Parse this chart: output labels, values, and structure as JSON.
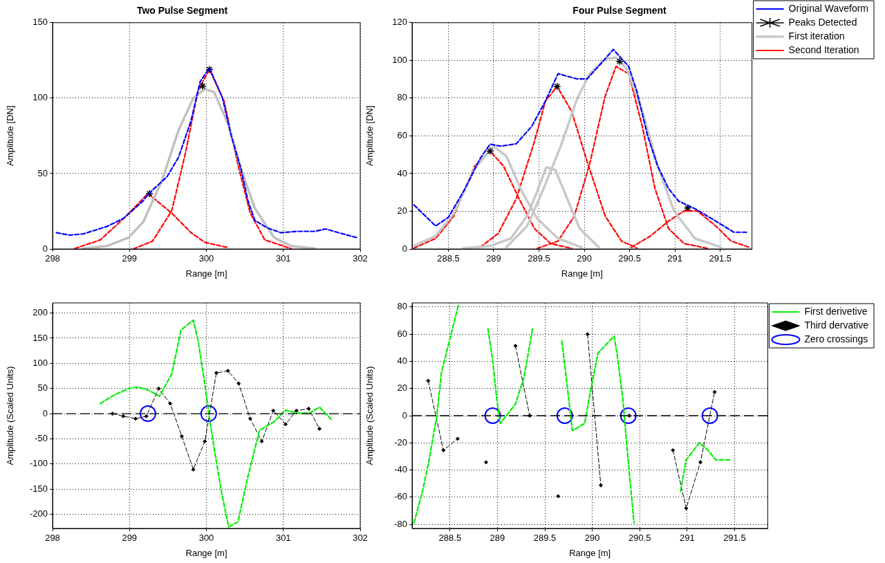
{
  "chart_data": [
    {
      "type": "line",
      "title": "Two Pulse Segment",
      "xlabel": "Range [m]",
      "ylabel": "Amplitude [DN]",
      "xlim": [
        298,
        302
      ],
      "xticks": [
        298,
        299,
        300,
        301,
        302
      ],
      "ylim": [
        0,
        150
      ],
      "yticks": [
        0,
        50,
        100,
        150
      ],
      "grid": true,
      "legend": false,
      "series": [
        {
          "color": "#0000ff",
          "line_style": "dashed",
          "x": [
            298.05,
            298.22,
            298.4,
            298.71,
            298.93,
            299.18,
            299.25,
            299.49,
            299.64,
            299.8,
            299.92,
            300.04,
            300.21,
            300.32,
            300.45,
            300.54,
            300.63,
            300.79,
            300.97,
            301.19,
            301.41,
            301.55,
            301.72,
            301.95
          ],
          "values": [
            10.8,
            9.2,
            10,
            15,
            20.5,
            32,
            36.7,
            48,
            61,
            85,
            111,
            120,
            100,
            75.6,
            53,
            32,
            19,
            14,
            10.8,
            11.7,
            11.7,
            13.3,
            10.8,
            7.6
          ]
        },
        {
          "type": "scatter",
          "color": "#000000",
          "marker": "cross",
          "x": [
            299.26,
            299.95,
            300.04
          ],
          "values": [
            36.7,
            108,
            119
          ]
        },
        {
          "color": "#c0c0c0",
          "line_style": "solid",
          "x": [
            298.4,
            298.71,
            298.99,
            299.18,
            299.42,
            299.64,
            299.83,
            299.98,
            300.1,
            300.29,
            300.45,
            300.63,
            300.88,
            301.1,
            301.41
          ],
          "values": [
            0.3,
            2,
            7.6,
            18,
            45,
            79,
            100,
            106,
            104,
            82,
            53,
            27,
            7.6,
            2,
            0.3
          ]
        },
        {
          "color": "#ff0000",
          "line_style": "dashed",
          "x": [
            298.29,
            298.62,
            298.93,
            299.24,
            299.55,
            299.8,
            299.98,
            300.29
          ],
          "values": [
            0.3,
            6,
            20.5,
            36.7,
            23.8,
            10.8,
            4.4,
            0.8
          ]
        },
        {
          "color": "#ff0000",
          "line_style": "dashed",
          "x": [
            299.05,
            299.3,
            299.55,
            299.73,
            299.89,
            300.04,
            300.23,
            300.41,
            300.57,
            300.76,
            301.1
          ],
          "values": [
            0,
            5.2,
            25.4,
            64,
            105,
            119,
            98,
            56,
            23.8,
            6,
            0.3
          ]
        }
      ]
    },
    {
      "type": "line",
      "title": "Four Pulse Segment",
      "xlabel": "Range [m]",
      "ylabel": "Amplitude [DN]",
      "xlim": [
        288.1,
        291.85
      ],
      "xticks": [
        288.5,
        289,
        289.5,
        290,
        290.5,
        291,
        291.5
      ],
      "ylim": [
        0,
        120
      ],
      "yticks": [
        0,
        20,
        40,
        60,
        80,
        100,
        120
      ],
      "grid": true,
      "legend": "right",
      "series": [
        {
          "name": "Original Waveform",
          "color": "#0000ff",
          "line_style": "dashed",
          "x": [
            288.12,
            288.36,
            288.5,
            288.67,
            288.85,
            288.96,
            289.08,
            289.25,
            289.42,
            289.57,
            289.71,
            289.92,
            290.03,
            290.18,
            290.32,
            290.49,
            290.58,
            290.7,
            290.81,
            290.93,
            291.04,
            291.22,
            291.45,
            291.65,
            291.81
          ],
          "values": [
            23.4,
            12.2,
            16.8,
            30.7,
            47.9,
            55.6,
            54.5,
            55.8,
            65,
            78.3,
            92.9,
            90.2,
            90.2,
            98.1,
            105.8,
            96.8,
            83.6,
            59.8,
            43.9,
            32,
            25.4,
            21.4,
            14.8,
            8.9,
            8.9
          ]
        },
        {
          "name": "Peaks Detected",
          "type": "scatter",
          "color": "#000000",
          "marker": "cross",
          "x": [
            288.96,
            289.7,
            290.39,
            291.14
          ],
          "values": [
            51.9,
            86.2,
            99.5,
            21.7
          ]
        },
        {
          "name": "First iteration",
          "color": "#c8c8c8",
          "line_style": "solid",
          "x": [
            288.12,
            288.36,
            288.56,
            288.79,
            289,
            289.14,
            289.31,
            289.48,
            289.71,
            289.97
          ],
          "values": [
            1.6,
            6.9,
            18.8,
            42.6,
            54.5,
            49.2,
            30.7,
            16.1,
            5.6,
            0.9
          ]
        },
        {
          "color": "#c8c8c8",
          "line_style": "solid",
          "x": [
            288.67,
            288.96,
            289.19,
            289.37,
            289.48,
            289.58,
            289.68,
            289.8,
            289.95,
            290.16
          ],
          "values": [
            0.5,
            1.6,
            5.6,
            17.5,
            30.7,
            43.3,
            41.9,
            28,
            10.8,
            0.9
          ]
        },
        {
          "color": "#c8c8c8",
          "line_style": "solid",
          "x": [
            289.14,
            289.37,
            289.54,
            289.74,
            289.92,
            290.06,
            290.23,
            290.35,
            290.47,
            290.64,
            290.81,
            290.99,
            291.22,
            291.51
          ],
          "values": [
            0.9,
            12.2,
            30.7,
            54.5,
            79.6,
            92.9,
            100.8,
            101.5,
            95.5,
            73,
            43.9,
            20.1,
            5.6,
            0.9
          ]
        },
        {
          "name": "Second Iteration",
          "color": "#ff0000",
          "line_style": "dashed",
          "x": [
            288.12,
            288.36,
            288.56,
            288.79,
            288.96,
            289.11,
            289.28,
            289.45,
            289.63,
            289.86
          ],
          "values": [
            0.5,
            5.6,
            17.5,
            43.9,
            51.9,
            43.9,
            26.7,
            10.8,
            2.9,
            0.3
          ]
        },
        {
          "color": "#ff0000",
          "line_style": "dashed",
          "x": [
            288.85,
            289.05,
            289.25,
            289.45,
            289.57,
            289.7,
            289.86,
            290.03,
            290.23,
            290.41,
            290.58
          ],
          "values": [
            0.9,
            8.2,
            26.7,
            57,
            78.3,
            86.2,
            73,
            46.6,
            17.5,
            4.2,
            0.5
          ]
        },
        {
          "color": "#ff0000",
          "line_style": "dashed",
          "x": [
            289.48,
            289.71,
            289.89,
            290.06,
            290.23,
            290.35,
            290.49,
            290.64,
            290.78,
            290.93,
            291.1,
            291.36
          ],
          "values": [
            0.3,
            4.2,
            17.5,
            45.2,
            81,
            96.8,
            92.9,
            65,
            32,
            10.8,
            2.9,
            0.3
          ]
        },
        {
          "color": "#ff0000",
          "line_style": "dashed",
          "x": [
            290.52,
            290.73,
            290.93,
            291.1,
            291.25,
            291.45,
            291.62,
            291.82
          ],
          "values": [
            0.9,
            6.9,
            14.8,
            20.1,
            20.1,
            12.2,
            4.2,
            0.9
          ]
        }
      ]
    },
    {
      "type": "line",
      "xlabel": "Range [m]",
      "ylabel": "Amplitude (Scaled Units)",
      "xlim": [
        298,
        302
      ],
      "xticks": [
        298,
        299,
        300,
        301,
        302
      ],
      "ylim": [
        -228,
        220
      ],
      "yticks": [
        -200,
        -150,
        -100,
        -50,
        0,
        50,
        100,
        150,
        200
      ],
      "grid": true,
      "legend": false,
      "ref_lines": [
        {
          "axis": "y",
          "value": 0,
          "color": "#000000",
          "line_style": "dashed"
        }
      ],
      "series": [
        {
          "color": "#00ee00",
          "line_style": "dashed",
          "x": [
            298.62,
            298.8,
            298.99,
            299.11,
            299.24,
            299.39,
            299.55,
            299.67,
            299.83,
            299.89,
            299.98,
            300.04,
            300.11,
            300.2,
            300.29,
            300.41,
            300.54,
            300.69,
            300.88,
            301.03,
            301.19,
            301.34,
            301.47,
            301.64
          ],
          "values": [
            20,
            37,
            50,
            53,
            47,
            35,
            79,
            166,
            186,
            147,
            59,
            -9,
            -77,
            -159,
            -225,
            -215,
            -125,
            -33,
            -16,
            7,
            1,
            1,
            13,
            -14
          ]
        },
        {
          "color": "#000000",
          "line_style": "dashed",
          "marker": "diamond",
          "x": [
            298.78,
            298.92,
            299.08,
            299.22,
            299.38,
            299.53,
            299.68,
            299.83,
            299.98,
            300.13,
            300.28,
            300.42,
            300.57,
            300.72,
            300.87,
            301.03,
            301.17,
            301.33,
            301.47
          ],
          "values": [
            0,
            -5,
            -10,
            -5,
            50,
            20,
            -45,
            -111,
            -55,
            81,
            85,
            60,
            -10,
            -55,
            6,
            -21,
            6,
            10,
            -30
          ]
        },
        {
          "type": "scatter",
          "color": "#0000ff",
          "marker": "circle",
          "x": [
            299.24,
            300.03
          ],
          "values": [
            0,
            0
          ]
        }
      ]
    },
    {
      "type": "line",
      "xlabel": "Range [m]",
      "ylabel": "Amplitude (Scaled Units)",
      "xlim": [
        288.1,
        291.85
      ],
      "xticks": [
        288.5,
        289,
        289.5,
        290,
        290.5,
        291,
        291.5
      ],
      "ylim": [
        -83,
        83
      ],
      "yticks": [
        -80,
        -60,
        -40,
        -20,
        0,
        20,
        40,
        60,
        80
      ],
      "grid": true,
      "legend": "right",
      "ref_lines": [
        {
          "axis": "y",
          "value": 0,
          "color": "#000000",
          "line_style": "dashed"
        }
      ],
      "series": [
        {
          "name": "First derivetive",
          "color": "#00ee00",
          "line_style": "dashed",
          "x": [
            288.12,
            288.21,
            288.28,
            288.36,
            288.41,
            288.5,
            288.59,
            288.7,
            288.9,
            288.95,
            288.99,
            289.03,
            289.11,
            289.19,
            289.28,
            289.37,
            289.5,
            289.68,
            289.74,
            289.79,
            289.92,
            289.97,
            290.06,
            290.23,
            290.26,
            290.32,
            290.38,
            290.44,
            290.6,
            290.93,
            290.99,
            291.13,
            291.22,
            291.3,
            291.45
          ],
          "values": [
            -78.9,
            -55.7,
            -32.5,
            -0.4,
            31.8,
            56.8,
            81.8,
            null,
            63.9,
            40.7,
            13.9,
            -5.7,
            1.4,
            8.6,
            28.2,
            63.9,
            null,
            55,
            19.3,
            -11,
            -5.7,
            13.9,
            46,
            58.6,
            46,
            13.9,
            -34.3,
            -78.9,
            null,
            -55.7,
            -32.5,
            -20,
            -25.4,
            -32.5,
            -32.5
          ]
        },
        {
          "name": "Third dervative",
          "color": "#000000",
          "line_style": "dashed",
          "marker": "diamond",
          "x": [
            288.27,
            288.43,
            288.58,
            288.74,
            288.88,
            289.05,
            289.19,
            289.34,
            289.52,
            289.64,
            289.83,
            289.95,
            290.09,
            290.2,
            290.39,
            290.6,
            290.85,
            290.99,
            291.14,
            291.29
          ],
          "values": [
            25.7,
            -25.4,
            -17,
            null,
            -34.3,
            null,
            51.4,
            0,
            null,
            -59.3,
            null,
            60,
            -51.3,
            null,
            0,
            null,
            -25.4,
            -68.2,
            -34.3,
            17.5
          ]
        },
        {
          "name": "Zero crossings",
          "type": "scatter",
          "color": "#0000ff",
          "marker": "circle",
          "x": [
            288.95,
            289.71,
            290.38,
            291.24
          ],
          "values": [
            0,
            0,
            0,
            0
          ]
        }
      ]
    }
  ]
}
